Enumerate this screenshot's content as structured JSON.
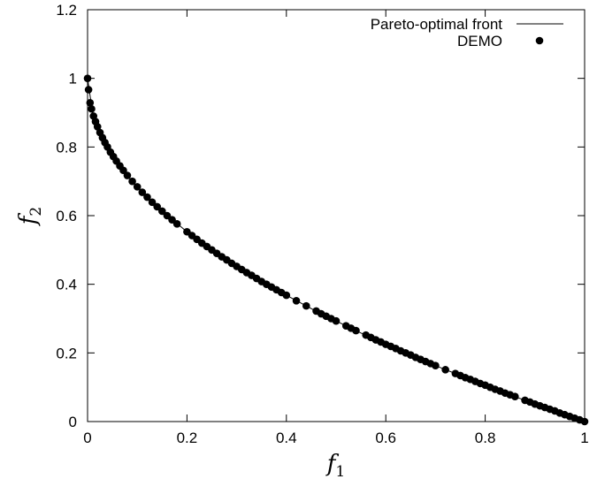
{
  "chart_data": {
    "type": "scatter",
    "xlim": [
      0,
      1
    ],
    "ylim": [
      0,
      1.2
    ],
    "x_ticks": [
      "0",
      "0.2",
      "0.4",
      "0.6",
      "0.8",
      "1"
    ],
    "y_ticks": [
      "0",
      "0.2",
      "0.4",
      "0.6",
      "0.8",
      "1",
      "1.2"
    ],
    "xlabel": "f",
    "xlabel_sub": "1",
    "ylabel": "f",
    "ylabel_sub": "2",
    "grid": false,
    "legend_position": "top-right",
    "series": [
      {
        "name": "Pareto-optimal front",
        "style": "line",
        "color": "#000000",
        "x": [
          0,
          0.01,
          0.02,
          0.04,
          0.06,
          0.08,
          0.1,
          0.15,
          0.2,
          0.25,
          0.3,
          0.35,
          0.4,
          0.45,
          0.5,
          0.55,
          0.6,
          0.65,
          0.7,
          0.75,
          0.8,
          0.85,
          0.9,
          0.95,
          1.0
        ],
        "y": [
          1.0,
          0.9,
          0.859,
          0.8,
          0.755,
          0.717,
          0.684,
          0.613,
          0.553,
          0.5,
          0.452,
          0.408,
          0.368,
          0.329,
          0.293,
          0.258,
          0.225,
          0.194,
          0.163,
          0.134,
          0.106,
          0.078,
          0.051,
          0.025,
          0.0
        ]
      },
      {
        "name": "DEMO",
        "style": "points",
        "color": "#000000",
        "x": [
          0,
          0.002,
          0.005,
          0.008,
          0.012,
          0.016,
          0.02,
          0.025,
          0.03,
          0.035,
          0.04,
          0.046,
          0.052,
          0.058,
          0.065,
          0.072,
          0.08,
          0.09,
          0.1,
          0.11,
          0.12,
          0.13,
          0.14,
          0.15,
          0.16,
          0.17,
          0.18,
          0.2,
          0.21,
          0.22,
          0.23,
          0.24,
          0.25,
          0.26,
          0.27,
          0.28,
          0.29,
          0.3,
          0.31,
          0.32,
          0.33,
          0.34,
          0.35,
          0.36,
          0.37,
          0.38,
          0.39,
          0.4,
          0.42,
          0.44,
          0.46,
          0.47,
          0.48,
          0.49,
          0.5,
          0.52,
          0.53,
          0.54,
          0.56,
          0.57,
          0.58,
          0.59,
          0.6,
          0.61,
          0.62,
          0.63,
          0.64,
          0.65,
          0.66,
          0.67,
          0.68,
          0.69,
          0.7,
          0.72,
          0.74,
          0.75,
          0.76,
          0.77,
          0.78,
          0.79,
          0.8,
          0.81,
          0.82,
          0.83,
          0.84,
          0.85,
          0.86,
          0.88,
          0.89,
          0.9,
          0.91,
          0.92,
          0.93,
          0.94,
          0.95,
          0.96,
          0.97,
          0.98,
          0.99,
          1.0
        ],
        "y": [
          1.0,
          0.967,
          0.929,
          0.911,
          0.89,
          0.874,
          0.859,
          0.842,
          0.827,
          0.813,
          0.8,
          0.785,
          0.772,
          0.759,
          0.745,
          0.732,
          0.717,
          0.7,
          0.684,
          0.668,
          0.654,
          0.639,
          0.626,
          0.613,
          0.6,
          0.588,
          0.576,
          0.553,
          0.542,
          0.531,
          0.52,
          0.51,
          0.5,
          0.49,
          0.48,
          0.471,
          0.461,
          0.452,
          0.443,
          0.434,
          0.426,
          0.417,
          0.408,
          0.4,
          0.392,
          0.384,
          0.376,
          0.368,
          0.352,
          0.337,
          0.322,
          0.314,
          0.307,
          0.3,
          0.293,
          0.279,
          0.272,
          0.265,
          0.252,
          0.245,
          0.238,
          0.232,
          0.225,
          0.219,
          0.213,
          0.206,
          0.2,
          0.194,
          0.187,
          0.181,
          0.175,
          0.169,
          0.163,
          0.151,
          0.14,
          0.134,
          0.128,
          0.123,
          0.117,
          0.111,
          0.106,
          0.1,
          0.094,
          0.089,
          0.083,
          0.078,
          0.073,
          0.062,
          0.057,
          0.051,
          0.046,
          0.041,
          0.036,
          0.031,
          0.025,
          0.02,
          0.015,
          0.01,
          0.005,
          0.0
        ]
      }
    ]
  }
}
